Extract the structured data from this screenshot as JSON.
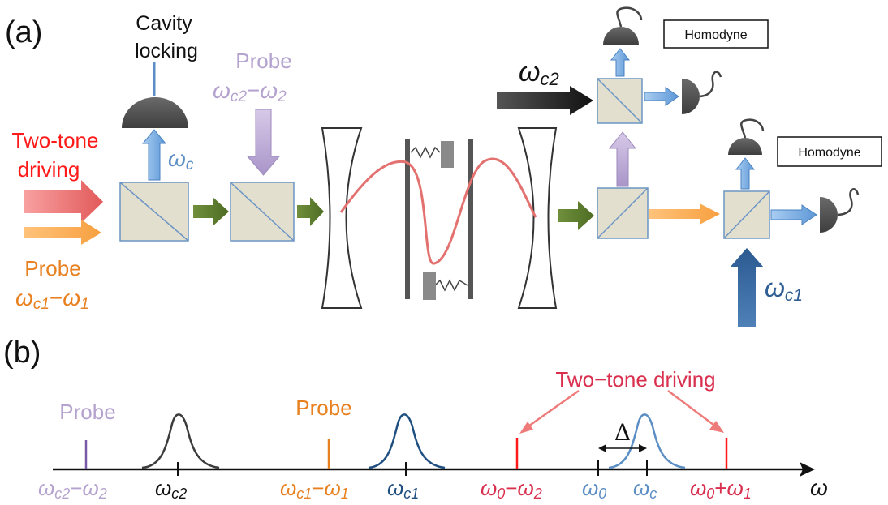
{
  "panel_a": {
    "label": "(a)",
    "cavity_locking": {
      "line1": "Cavity",
      "line2": "locking"
    },
    "probe_top": {
      "title": "Probe",
      "freq_main": "ω",
      "freq_sub": "c2",
      "freq_op": "−",
      "freq_main2": "ω",
      "freq_sub2": "2"
    },
    "driving": {
      "line1": "Two-tone",
      "line2": "driving"
    },
    "omega_c_label": {
      "main": "ω",
      "sub": "c"
    },
    "probe_bottom": {
      "title": "Probe",
      "freq_main": "ω",
      "freq_sub": "c1",
      "freq_op": "−",
      "freq_main2": "ω",
      "freq_sub2": "1"
    },
    "omega_c2_label": {
      "main": "ω",
      "sub": "c2"
    },
    "omega_c1_label": {
      "main": "ω",
      "sub": "c1"
    },
    "homodyne_top": "Homodyne",
    "homodyne_right": "Homodyne"
  },
  "panel_b": {
    "label": "(b)",
    "probe_left": "Probe",
    "probe_mid": "Probe",
    "two_tone": "Two−tone driving",
    "delta": "Δ",
    "axis_symbol": "ω",
    "ticks": [
      {
        "main": "ω",
        "sub": "c2",
        "op": "−",
        "main2": "ω",
        "sub2": "2",
        "color": "#b5a3cf"
      },
      {
        "main": "ω",
        "sub": "c2",
        "op": "",
        "main2": "",
        "sub2": "",
        "color": "#111111"
      },
      {
        "main": "ω",
        "sub": "c1",
        "op": "−",
        "main2": "ω",
        "sub2": "1",
        "color": "#e8801f"
      },
      {
        "main": "ω",
        "sub": "c1",
        "op": "",
        "main2": "",
        "sub2": "",
        "color": "#1f4f80"
      },
      {
        "main": "ω",
        "sub": "0",
        "op": "−",
        "main2": "ω",
        "sub2": "2",
        "color": "#d9304f"
      },
      {
        "main": "ω",
        "sub": "0",
        "op": "",
        "main2": "",
        "sub2": "",
        "color": "#5b8ec4"
      },
      {
        "main": "ω",
        "sub": "c",
        "op": "",
        "main2": "",
        "sub2": "",
        "color": "#5b8ec4"
      },
      {
        "main": "ω",
        "sub": "0",
        "op": "+",
        "main2": "ω",
        "sub2": "1",
        "color": "#d9304f"
      }
    ]
  },
  "colors": {
    "red": "#ff1a1a",
    "orange": "#e8801f",
    "lavender": "#b5a3cf",
    "blue_text": "#5b8ec4",
    "dark_blue": "#2e5e93",
    "green_arrow": "#5a7a2e",
    "beam_splitter": "#e3dfcf",
    "crimson": "#d9304f"
  }
}
